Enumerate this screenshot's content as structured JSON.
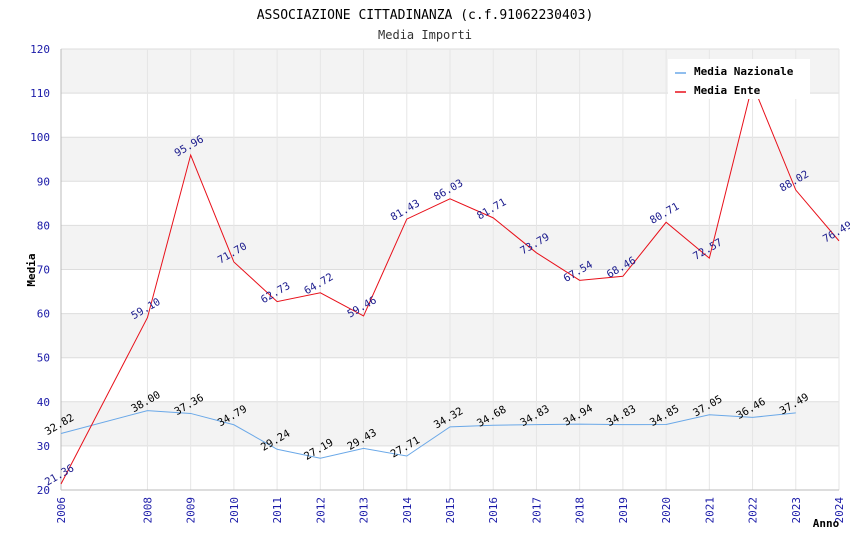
{
  "chart_data": {
    "type": "line",
    "title": "ASSOCIAZIONE CITTADINANZA (c.f.91062230403)",
    "subtitle": "Media Importi",
    "xlabel": "Anno",
    "ylabel": "Media",
    "ylim": [
      20,
      120
    ],
    "yticks": [
      20,
      30,
      40,
      50,
      60,
      70,
      80,
      90,
      100,
      110,
      120
    ],
    "x": [
      2006,
      2008,
      2009,
      2010,
      2011,
      2012,
      2013,
      2014,
      2015,
      2016,
      2017,
      2018,
      2019,
      2020,
      2021,
      2022,
      2023,
      2024
    ],
    "grid": true,
    "legend_position": "top-right",
    "series": [
      {
        "name": "Media Nazionale",
        "color": "#6aa8e8",
        "label_color": "#000000",
        "x": [
          2006,
          2008,
          2009,
          2010,
          2011,
          2012,
          2013,
          2014,
          2015,
          2016,
          2017,
          2018,
          2019,
          2020,
          2021,
          2022,
          2023
        ],
        "values": [
          32.82,
          38.0,
          37.36,
          34.79,
          29.24,
          27.19,
          29.43,
          27.71,
          34.32,
          34.68,
          34.83,
          34.94,
          34.83,
          34.85,
          37.05,
          36.46,
          37.49
        ],
        "labels": [
          "32.82",
          "38.00",
          "37.36",
          "34.79",
          "29.24",
          "27.19",
          "29.43",
          "27.71",
          "34.32",
          "34.68",
          "34.83",
          "34.94",
          "34.83",
          "34.85",
          "37.05",
          "36.46",
          "37.49"
        ]
      },
      {
        "name": "Media Ente",
        "color": "#e8101a",
        "label_color": "#1a1a8c",
        "x": [
          2006,
          2008,
          2009,
          2010,
          2011,
          2012,
          2013,
          2014,
          2015,
          2016,
          2017,
          2018,
          2019,
          2020,
          2021,
          2022,
          2023,
          2024
        ],
        "values": [
          21.36,
          59.1,
          95.96,
          71.7,
          62.73,
          64.72,
          59.46,
          81.43,
          86.03,
          81.71,
          73.79,
          67.54,
          68.46,
          80.71,
          72.57,
          112.0,
          88.02,
          76.49
        ],
        "labels": [
          "21.36",
          "59.10",
          "95.96",
          "71.70",
          "62.73",
          "64.72",
          "59.46",
          "81.43",
          "86.03",
          "81.71",
          "73.79",
          "67.54",
          "68.46",
          "80.71",
          "72.57",
          "",
          "88.02",
          "76.49"
        ]
      }
    ]
  }
}
